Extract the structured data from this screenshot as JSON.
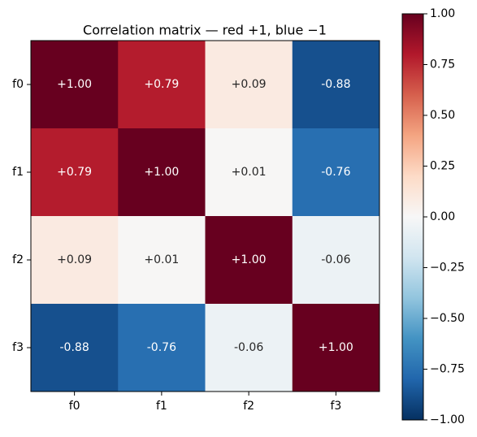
{
  "chart_data": {
    "type": "heatmap",
    "title": "Correlation matrix — red +1, blue −1",
    "x_categories": [
      "f0",
      "f1",
      "f2",
      "f3"
    ],
    "y_categories": [
      "f0",
      "f1",
      "f2",
      "f3"
    ],
    "values": [
      [
        1.0,
        0.79,
        0.09,
        -0.88
      ],
      [
        0.79,
        1.0,
        0.01,
        -0.76
      ],
      [
        0.09,
        0.01,
        1.0,
        -0.06
      ],
      [
        -0.88,
        -0.76,
        -0.06,
        1.0
      ]
    ],
    "value_labels": [
      [
        "+1.00",
        "+0.79",
        "+0.09",
        "-0.88"
      ],
      [
        "+0.79",
        "+1.00",
        "+0.01",
        "-0.76"
      ],
      [
        "+0.09",
        "+0.01",
        "+1.00",
        "-0.06"
      ],
      [
        "-0.88",
        "-0.76",
        "-0.06",
        "+1.00"
      ]
    ],
    "colormap": "RdBu_r",
    "clim": [
      -1,
      1
    ],
    "cticks": [
      {
        "value": 1,
        "label": "1.00"
      },
      {
        "value": 0.75,
        "label": "0.75"
      },
      {
        "value": 0.5,
        "label": "0.50"
      },
      {
        "value": 0.25,
        "label": "0.25"
      },
      {
        "value": 0,
        "label": "0.00"
      },
      {
        "value": -0.25,
        "label": "−0.25"
      },
      {
        "value": -0.5,
        "label": "−0.50"
      },
      {
        "value": -0.75,
        "label": "−0.75"
      },
      {
        "value": -1,
        "label": "−1.00"
      }
    ]
  }
}
